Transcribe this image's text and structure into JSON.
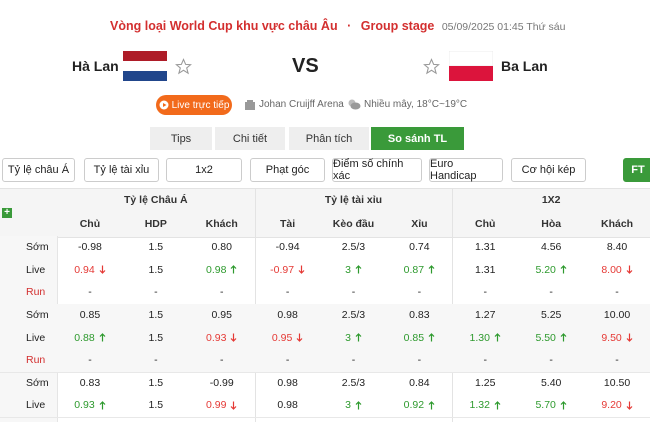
{
  "header": {
    "competition": "Vòng loại World Cup khu vực châu Âu",
    "separator": "·",
    "stage": "Group stage",
    "datetime": "05/09/2025 01:45 Thứ sáu"
  },
  "match": {
    "home": "Hà Lan",
    "vs": "VS",
    "away": "Ba Lan"
  },
  "info": {
    "live_button": "Live trực tiếp",
    "venue": "Johan Cruijff Arena",
    "weather": "Nhiều mây, 18°C~19°C"
  },
  "tabs": [
    {
      "label": "Tips"
    },
    {
      "label": "Chi tiết"
    },
    {
      "label": "Phân tích"
    },
    {
      "label": "So sánh TL",
      "active": true
    }
  ],
  "filters": [
    {
      "label": "Tỷ lệ châu Á"
    },
    {
      "label": "Tỷ lệ tài xỉu"
    },
    {
      "label": "1x2"
    },
    {
      "label": "Phạt góc"
    },
    {
      "label": "Điểm số chính xác"
    },
    {
      "label": "Euro Handicap"
    },
    {
      "label": "Cơ hội kép"
    },
    {
      "label": "FT",
      "active": true
    }
  ],
  "table": {
    "groups": [
      "Tỷ lệ Châu Á",
      "Tỷ lệ tài xỉu",
      "1X2"
    ],
    "columns": [
      "Chủ",
      "HDP",
      "Khách",
      "Tài",
      "Kèo đầu",
      "Xỉu",
      "Chủ",
      "Hòa",
      "Khách"
    ],
    "blocks": [
      [
        {
          "label": "Sớm",
          "cells": [
            {
              "text": "-0.98"
            },
            {
              "text": "1.5"
            },
            {
              "text": "0.80"
            },
            {
              "text": "-0.94"
            },
            {
              "text": "2.5/3"
            },
            {
              "text": "0.74"
            },
            {
              "text": "1.31"
            },
            {
              "text": "4.56"
            },
            {
              "text": "8.40"
            }
          ]
        },
        {
          "label": "Live",
          "cells": [
            {
              "text": "0.94",
              "trend": "down"
            },
            {
              "text": "1.5"
            },
            {
              "text": "0.98",
              "trend": "up"
            },
            {
              "text": "-0.97",
              "trend": "down"
            },
            {
              "text": "3",
              "trend": "up"
            },
            {
              "text": "0.87",
              "trend": "up"
            },
            {
              "text": "1.31"
            },
            {
              "text": "5.20",
              "trend": "up"
            },
            {
              "text": "8.00",
              "trend": "down"
            }
          ]
        },
        {
          "label": "Run",
          "cells": [
            {
              "text": "-"
            },
            {
              "text": "-"
            },
            {
              "text": "-"
            },
            {
              "text": "-"
            },
            {
              "text": "-"
            },
            {
              "text": "-"
            },
            {
              "text": "-"
            },
            {
              "text": "-"
            },
            {
              "text": "-"
            }
          ]
        }
      ],
      [
        {
          "label": "Sớm",
          "cells": [
            {
              "text": "0.85"
            },
            {
              "text": "1.5"
            },
            {
              "text": "0.95"
            },
            {
              "text": "0.98"
            },
            {
              "text": "2.5/3"
            },
            {
              "text": "0.83"
            },
            {
              "text": "1.27"
            },
            {
              "text": "5.25"
            },
            {
              "text": "10.00"
            }
          ]
        },
        {
          "label": "Live",
          "cells": [
            {
              "text": "0.88",
              "trend": "up"
            },
            {
              "text": "1.5"
            },
            {
              "text": "0.93",
              "trend": "down"
            },
            {
              "text": "0.95",
              "trend": "down"
            },
            {
              "text": "3",
              "trend": "up"
            },
            {
              "text": "0.85",
              "trend": "up"
            },
            {
              "text": "1.30",
              "trend": "up"
            },
            {
              "text": "5.50",
              "trend": "up"
            },
            {
              "text": "9.50",
              "trend": "down"
            }
          ]
        },
        {
          "label": "Run",
          "cells": [
            {
              "text": "-"
            },
            {
              "text": "-"
            },
            {
              "text": "-"
            },
            {
              "text": "-"
            },
            {
              "text": "-"
            },
            {
              "text": "-"
            },
            {
              "text": "-"
            },
            {
              "text": "-"
            },
            {
              "text": "-"
            }
          ]
        }
      ],
      [
        {
          "label": "Sớm",
          "cells": [
            {
              "text": "0.83"
            },
            {
              "text": "1.5"
            },
            {
              "text": "-0.99"
            },
            {
              "text": "0.98"
            },
            {
              "text": "2.5/3"
            },
            {
              "text": "0.84"
            },
            {
              "text": "1.25"
            },
            {
              "text": "5.40"
            },
            {
              "text": "10.50"
            }
          ]
        },
        {
          "label": "Live",
          "cells": [
            {
              "text": "0.93",
              "trend": "up"
            },
            {
              "text": "1.5"
            },
            {
              "text": "0.99",
              "trend": "down"
            },
            {
              "text": "0.98"
            },
            {
              "text": "3",
              "trend": "up"
            },
            {
              "text": "0.92",
              "trend": "up"
            },
            {
              "text": "1.32",
              "trend": "up"
            },
            {
              "text": "5.70",
              "trend": "up"
            },
            {
              "text": "9.20",
              "trend": "down"
            }
          ]
        }
      ]
    ]
  }
}
